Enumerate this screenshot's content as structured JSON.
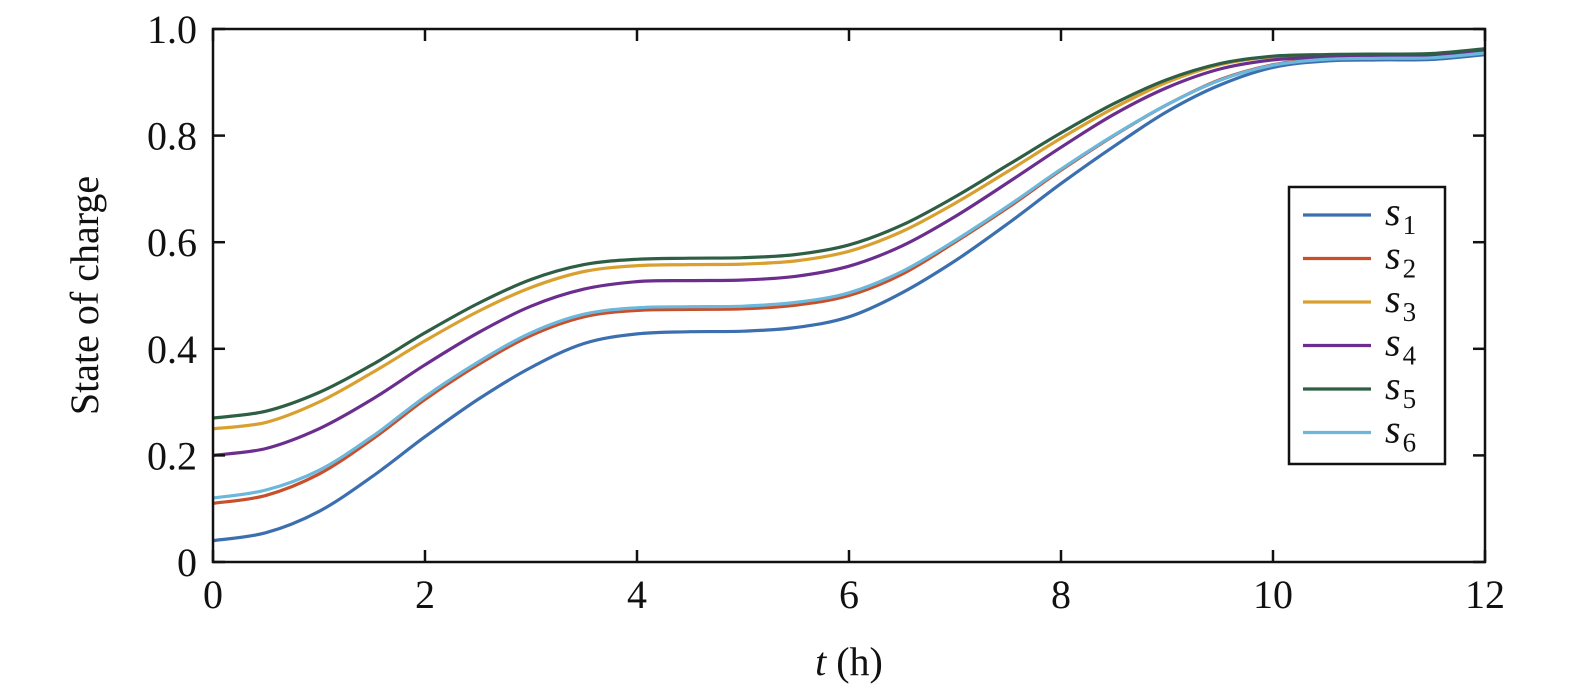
{
  "chart_data": {
    "type": "line",
    "xlabel_var": "t",
    "xlabel_unit": " (h)",
    "ylabel": "State of charge",
    "xlim": [
      0,
      12
    ],
    "ylim": [
      0,
      1.0
    ],
    "xticks": [
      0,
      2,
      4,
      6,
      8,
      10,
      12
    ],
    "xtick_labels": [
      "0",
      "2",
      "4",
      "6",
      "8",
      "10",
      "12"
    ],
    "yticks": [
      0,
      0.2,
      0.4,
      0.6,
      0.8,
      1.0
    ],
    "ytick_labels": [
      "0",
      "0.2",
      "0.4",
      "0.6",
      "0.8",
      "1.0"
    ],
    "grid": false,
    "legend_position": "right",
    "x": [
      0,
      0.5,
      1,
      1.5,
      2,
      2.5,
      3,
      3.5,
      4,
      4.5,
      5,
      5.5,
      6,
      6.5,
      7,
      7.5,
      8,
      8.5,
      9,
      9.5,
      10,
      10.5,
      11,
      11.5,
      12
    ],
    "series": [
      {
        "name": "s",
        "sub": "1",
        "color": "#3b6fb0",
        "values": [
          0.04,
          0.055,
          0.095,
          0.16,
          0.235,
          0.305,
          0.365,
          0.41,
          0.428,
          0.432,
          0.433,
          0.44,
          0.46,
          0.505,
          0.565,
          0.635,
          0.71,
          0.78,
          0.845,
          0.895,
          0.928,
          0.94,
          0.942,
          0.943,
          0.952
        ]
      },
      {
        "name": "s",
        "sub": "2",
        "color": "#c84f2a",
        "values": [
          0.11,
          0.125,
          0.165,
          0.23,
          0.305,
          0.37,
          0.425,
          0.46,
          0.472,
          0.474,
          0.475,
          0.482,
          0.5,
          0.54,
          0.6,
          0.665,
          0.735,
          0.8,
          0.858,
          0.905,
          0.933,
          0.945,
          0.947,
          0.948,
          0.957
        ]
      },
      {
        "name": "s",
        "sub": "3",
        "color": "#d9a030",
        "values": [
          0.25,
          0.262,
          0.3,
          0.355,
          0.415,
          0.47,
          0.515,
          0.545,
          0.556,
          0.558,
          0.559,
          0.565,
          0.583,
          0.62,
          0.673,
          0.733,
          0.795,
          0.852,
          0.9,
          0.933,
          0.948,
          0.951,
          0.952,
          0.953,
          0.962
        ]
      },
      {
        "name": "s",
        "sub": "4",
        "color": "#6b2e8e",
        "values": [
          0.2,
          0.213,
          0.25,
          0.305,
          0.37,
          0.43,
          0.48,
          0.512,
          0.526,
          0.528,
          0.529,
          0.536,
          0.555,
          0.593,
          0.648,
          0.712,
          0.778,
          0.84,
          0.89,
          0.925,
          0.942,
          0.947,
          0.948,
          0.949,
          0.958
        ]
      },
      {
        "name": "s",
        "sub": "5",
        "color": "#2e5e44",
        "values": [
          0.27,
          0.283,
          0.318,
          0.37,
          0.43,
          0.485,
          0.53,
          0.558,
          0.568,
          0.57,
          0.571,
          0.577,
          0.595,
          0.632,
          0.685,
          0.745,
          0.805,
          0.86,
          0.905,
          0.935,
          0.949,
          0.952,
          0.953,
          0.954,
          0.963
        ]
      },
      {
        "name": "s",
        "sub": "6",
        "color": "#6bb8dc",
        "values": [
          0.12,
          0.135,
          0.172,
          0.235,
          0.31,
          0.375,
          0.43,
          0.465,
          0.477,
          0.479,
          0.48,
          0.487,
          0.505,
          0.545,
          0.603,
          0.668,
          0.737,
          0.801,
          0.858,
          0.904,
          0.932,
          0.943,
          0.945,
          0.946,
          0.955
        ]
      }
    ]
  }
}
